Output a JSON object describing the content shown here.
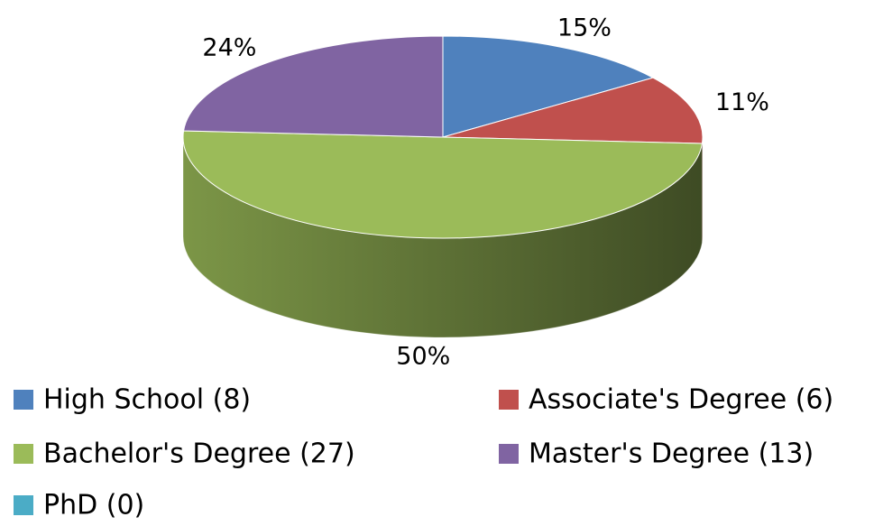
{
  "chart_data": {
    "type": "pie",
    "categories": [
      "High School (8)",
      "Associate's Degree (6)",
      "Bachelor's Degree (27)",
      "Master's Degree (13)",
      "PhD (0)"
    ],
    "values": [
      15,
      11,
      50,
      24,
      0
    ],
    "value_labels": [
      "15%",
      "11%",
      "50%",
      "24%",
      null
    ],
    "colors": [
      "#4f81bd",
      "#c0504d",
      "#9bbb59",
      "#8064a2",
      "#4bacc6"
    ],
    "legend": "bottom"
  }
}
